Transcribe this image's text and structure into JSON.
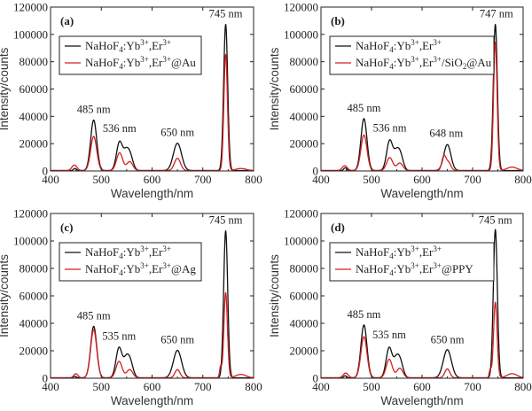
{
  "colors": {
    "reference": "#111111",
    "modified": "#d42020",
    "axis": "#222222"
  },
  "chart_data": [
    {
      "type": "line",
      "panel_label": "(a)",
      "xlabel": "Wavelength/nm",
      "ylabel": "Intensity/counts",
      "xlim": [
        400,
        800
      ],
      "ylim": [
        0,
        120000
      ],
      "xticks": [
        400,
        500,
        600,
        700,
        800
      ],
      "yticks": [
        0,
        20000,
        40000,
        60000,
        80000,
        100000,
        120000
      ],
      "legend_position": "top-left",
      "series": [
        {
          "name": "NaHoF4:Yb3+,Er3+",
          "legend": {
            "base": "NaHoF",
            "sub1": "4",
            "mid1": ":Yb",
            "sup1": "3+",
            "mid2": ",Er",
            "sup2": "3+",
            "mid3": "",
            "sub2": "",
            "tail": ""
          },
          "color_key": "reference",
          "peaks": [
            [
              448,
              1500,
              3
            ],
            [
              485,
              37000,
              6
            ],
            [
              536,
              21000,
              6
            ],
            [
              548,
              9000,
              5
            ],
            [
              556,
              12000,
              6
            ],
            [
              650,
              20000,
              8
            ],
            [
              745,
              107000,
              4
            ]
          ]
        },
        {
          "name": "NaHoF4:Yb3+,Er3+@Au",
          "legend": {
            "base": "NaHoF",
            "sub1": "4",
            "mid1": ":Yb",
            "sup1": "3+",
            "mid2": ",Er",
            "sup2": "3+",
            "mid3": "",
            "sub2": "",
            "tail": "@Au"
          },
          "color_key": "modified",
          "peaks": [
            [
              447,
              4000,
              5
            ],
            [
              485,
              25000,
              6
            ],
            [
              536,
              13000,
              6
            ],
            [
              556,
              6500,
              6
            ],
            [
              650,
              9000,
              6
            ],
            [
              745,
              85000,
              3.5
            ],
            [
              775,
              1500,
              10
            ]
          ]
        }
      ],
      "annotations": [
        {
          "text": "485 nm",
          "x": 485,
          "y": 42500
        },
        {
          "text": "536 nm",
          "x": 536,
          "y": 28500
        },
        {
          "text": "650 nm",
          "x": 650,
          "y": 25500
        },
        {
          "text": "745 nm",
          "x": 745,
          "y": 112500
        }
      ]
    },
    {
      "type": "line",
      "panel_label": "(b)",
      "xlabel": "Wavelength/nm",
      "ylabel": "Intensity/counts",
      "xlim": [
        400,
        800
      ],
      "ylim": [
        0,
        120000
      ],
      "xticks": [
        400,
        500,
        600,
        700,
        800
      ],
      "yticks": [
        0,
        20000,
        40000,
        60000,
        80000,
        100000,
        120000
      ],
      "legend_position": "top-left",
      "series": [
        {
          "name": "NaHoF4:Yb3+,Er3+",
          "legend": {
            "base": "NaHoF",
            "sub1": "4",
            "mid1": ":Yb",
            "sup1": "3+",
            "mid2": ",Er",
            "sup2": "3+",
            "mid3": "",
            "sub2": "",
            "tail": ""
          },
          "color_key": "reference",
          "peaks": [
            [
              448,
              2000,
              3
            ],
            [
              485,
              38000,
              6
            ],
            [
              536,
              22000,
              6
            ],
            [
              548,
              8000,
              5
            ],
            [
              556,
              13000,
              6
            ],
            [
              650,
              19000,
              7
            ],
            [
              745,
              107000,
              4
            ]
          ]
        },
        {
          "name": "NaHoF4:Yb3+,Er3+/SiO2@Au",
          "legend": {
            "base": "NaHoF",
            "sub1": "4",
            "mid1": ":Yb",
            "sup1": "3+",
            "mid2": ",Er",
            "sup2": "3+",
            "mid3": "/SiO",
            "sub2": "2",
            "tail": "@Au"
          },
          "color_key": "modified",
          "peaks": [
            [
              447,
              3500,
              5
            ],
            [
              485,
              26000,
              6
            ],
            [
              536,
              9500,
              6
            ],
            [
              556,
              5500,
              6
            ],
            [
              643,
              10000,
              4
            ],
            [
              652,
              6000,
              5
            ],
            [
              745,
              94000,
              3.5
            ],
            [
              778,
              2500,
              10
            ]
          ]
        }
      ],
      "annotations": [
        {
          "text": "485 nm",
          "x": 485,
          "y": 43500
        },
        {
          "text": "536 nm",
          "x": 536,
          "y": 29000
        },
        {
          "text": "648 nm",
          "x": 648,
          "y": 25000
        },
        {
          "text": "747 nm",
          "x": 747,
          "y": 112500
        }
      ]
    },
    {
      "type": "line",
      "panel_label": "(c)",
      "xlabel": "Wavelength/nm",
      "ylabel": "Intensity/counts",
      "xlim": [
        400,
        800
      ],
      "ylim": [
        0,
        120000
      ],
      "xticks": [
        400,
        500,
        600,
        700,
        800
      ],
      "yticks": [
        0,
        20000,
        40000,
        60000,
        80000,
        100000,
        120000
      ],
      "legend_position": "top-left",
      "series": [
        {
          "name": "NaHoF4:Yb3+,Er3+",
          "legend": {
            "base": "NaHoF",
            "sub1": "4",
            "mid1": ":Yb",
            "sup1": "3+",
            "mid2": ",Er",
            "sup2": "3+",
            "mid3": "",
            "sub2": "",
            "tail": ""
          },
          "color_key": "reference",
          "peaks": [
            [
              448,
              1000,
              3
            ],
            [
              485,
              37500,
              6
            ],
            [
              535,
              22000,
              6
            ],
            [
              548,
              9000,
              5
            ],
            [
              556,
              13000,
              6
            ],
            [
              650,
              20000,
              8
            ],
            [
              745,
              107000,
              4
            ]
          ]
        },
        {
          "name": "NaHoF4:Yb3+,Er3+@Ag",
          "legend": {
            "base": "NaHoF",
            "sub1": "4",
            "mid1": ":Yb",
            "sup1": "3+",
            "mid2": ",Er",
            "sup2": "3+",
            "mid3": "",
            "sub2": "",
            "tail": "@Ag"
          },
          "color_key": "modified",
          "peaks": [
            [
              450,
              3000,
              4
            ],
            [
              485,
              35000,
              6
            ],
            [
              535,
              12000,
              6
            ],
            [
              556,
              6000,
              6
            ],
            [
              650,
              6000,
              5
            ],
            [
              735,
              8000,
              2
            ],
            [
              745,
              62000,
              3.5
            ],
            [
              775,
              2500,
              10
            ]
          ]
        }
      ],
      "annotations": [
        {
          "text": "485 nm",
          "x": 485,
          "y": 43000
        },
        {
          "text": "535 nm",
          "x": 535,
          "y": 28000
        },
        {
          "text": "650 nm",
          "x": 650,
          "y": 25500
        },
        {
          "text": "745 nm",
          "x": 745,
          "y": 112500
        }
      ]
    },
    {
      "type": "line",
      "panel_label": "(d)",
      "xlabel": "Wavelength/nm",
      "ylabel": "Intensity/counts",
      "xlim": [
        400,
        800
      ],
      "ylim": [
        0,
        120000
      ],
      "xticks": [
        400,
        500,
        600,
        700,
        800
      ],
      "yticks": [
        0,
        20000,
        40000,
        60000,
        80000,
        100000,
        120000
      ],
      "legend_position": "top-left",
      "series": [
        {
          "name": "NaHoF4:Yb3+,Er3+",
          "legend": {
            "base": "NaHoF",
            "sub1": "4",
            "mid1": ":Yb",
            "sup1": "3+",
            "mid2": ",Er",
            "sup2": "3+",
            "mid3": "",
            "sub2": "",
            "tail": ""
          },
          "color_key": "reference",
          "peaks": [
            [
              448,
              1500,
              3
            ],
            [
              485,
              38500,
              6
            ],
            [
              535,
              22000,
              6
            ],
            [
              548,
              9000,
              5
            ],
            [
              556,
              13000,
              6
            ],
            [
              650,
              20500,
              8
            ],
            [
              745,
              108000,
              4
            ]
          ]
        },
        {
          "name": "NaHoF4:Yb3+,Er3+@PPY",
          "legend": {
            "base": "NaHoF",
            "sub1": "4",
            "mid1": ":Yb",
            "sup1": "3+",
            "mid2": ",Er",
            "sup2": "3+",
            "mid3": "",
            "sub2": "",
            "tail": "@PPY"
          },
          "color_key": "modified",
          "peaks": [
            [
              449,
              3500,
              5
            ],
            [
              485,
              30000,
              6
            ],
            [
              535,
              13500,
              6
            ],
            [
              556,
              7000,
              6
            ],
            [
              650,
              6500,
              5
            ],
            [
              735,
              6000,
              2
            ],
            [
              745,
              55000,
              3.5
            ],
            [
              778,
              3000,
              10
            ]
          ]
        }
      ],
      "annotations": [
        {
          "text": "485 nm",
          "x": 485,
          "y": 44000
        },
        {
          "text": "535 nm",
          "x": 535,
          "y": 29000
        },
        {
          "text": "650 nm",
          "x": 650,
          "y": 25500
        },
        {
          "text": "745 nm",
          "x": 745,
          "y": 112500
        }
      ]
    }
  ]
}
